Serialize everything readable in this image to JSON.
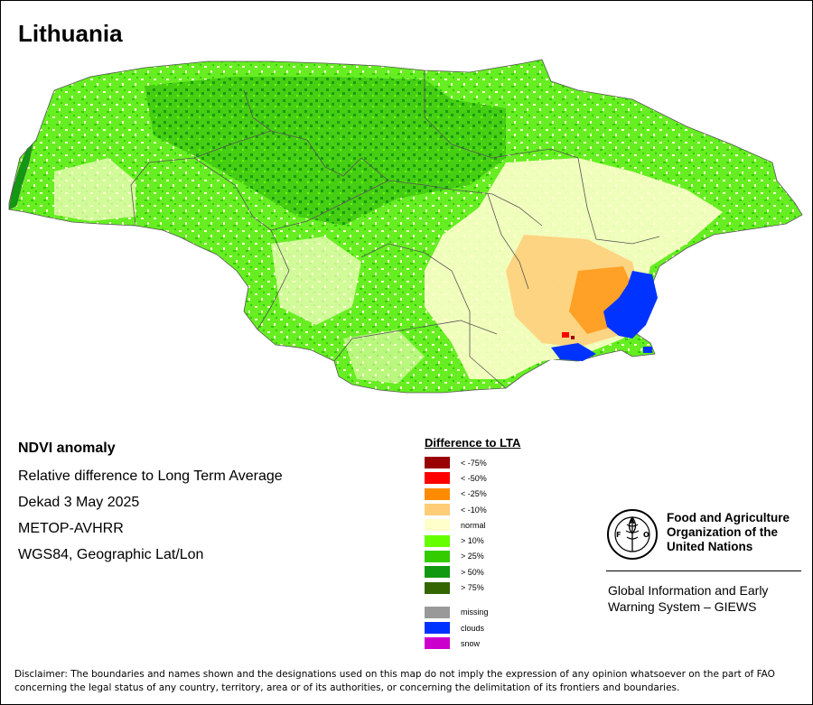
{
  "title": "Lithuania",
  "info": {
    "heading": "NDVI anomaly",
    "lines": [
      "Relative difference to Long Term Average",
      "Dekad 3 May 2025",
      "METOP-AVHRR",
      "WGS84, Geographic Lat/Lon"
    ]
  },
  "legend": {
    "title": "Difference to LTA",
    "classes": [
      {
        "label": "< -75%",
        "color": "#990000"
      },
      {
        "label": "< -50%",
        "color": "#ff0000"
      },
      {
        "label": "< -25%",
        "color": "#ff8c00"
      },
      {
        "label": "< -10%",
        "color": "#ffcc77"
      },
      {
        "label": "normal",
        "color": "#ffffcc"
      },
      {
        "label": "> 10%",
        "color": "#66ff00"
      },
      {
        "label": "> 25%",
        "color": "#33cc00"
      },
      {
        "label": "> 50%",
        "color": "#119911"
      },
      {
        "label": "> 75%",
        "color": "#336600"
      }
    ],
    "special": [
      {
        "label": "missing",
        "color": "#999999"
      },
      {
        "label": "clouds",
        "color": "#0033ff"
      },
      {
        "label": "snow",
        "color": "#cc00cc"
      }
    ]
  },
  "fao": {
    "name_lines": [
      "Food and Agriculture",
      "Organization of the",
      "United Nations"
    ],
    "giews_lines": [
      "Global Information and Early",
      "Warning System – GIEWS"
    ],
    "logo_text": "FIAT PANIS"
  },
  "disclaimer_lines": [
    "Disclaimer: The boundaries and names shown and the designations used on this map do not imply the expression of any opinion whatsoever on the part of FAO",
    "concerning the legal status of any country, territory, area or of its authorities, or concerning the delimitation of its frontiers and boundaries."
  ]
}
